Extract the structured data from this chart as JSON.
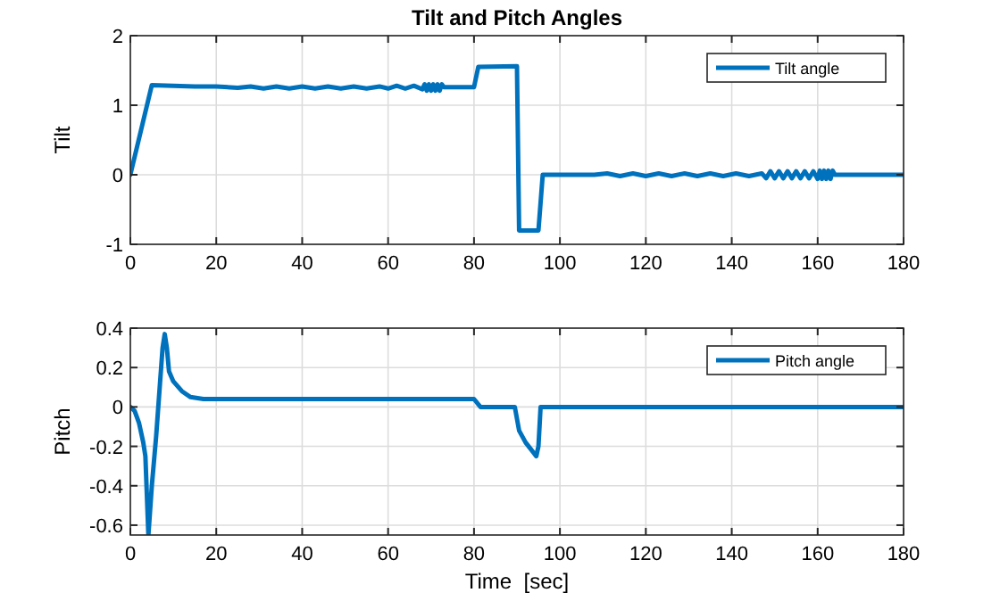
{
  "chart_data": [
    {
      "type": "line",
      "title": "Tilt and Pitch Angles",
      "ylabel": "Tilt",
      "xlim": [
        0,
        180
      ],
      "ylim": [
        -1,
        2
      ],
      "xticks": [
        0,
        20,
        40,
        60,
        80,
        100,
        120,
        140,
        160,
        180
      ],
      "yticks": [
        -1,
        0,
        1,
        2
      ],
      "grid": true,
      "legend": "top right",
      "line_style": "solid",
      "marker": "none",
      "series": [
        {
          "name": "Tilt angle",
          "color": "#0072bd",
          "x": [
            0,
            5,
            10,
            15,
            20,
            25,
            28,
            31,
            34,
            37,
            40,
            43,
            46,
            49,
            52,
            55,
            58,
            60,
            62,
            64,
            66,
            68,
            68.5,
            69,
            69.5,
            70,
            70.5,
            71,
            71.5,
            72,
            72.5,
            73,
            74,
            76,
            80,
            81,
            90,
            90.5,
            95,
            96,
            100,
            108,
            111,
            114,
            117,
            120,
            123,
            126,
            129,
            132,
            135,
            138,
            141,
            144,
            147,
            148,
            149,
            150,
            151,
            152,
            153,
            154,
            155,
            156,
            157,
            158,
            159,
            160,
            160.5,
            161,
            161.5,
            162,
            162.5,
            163,
            163.5,
            164,
            165,
            170,
            180
          ],
          "values": [
            0,
            1.29,
            1.28,
            1.27,
            1.27,
            1.25,
            1.27,
            1.24,
            1.27,
            1.24,
            1.27,
            1.24,
            1.27,
            1.24,
            1.27,
            1.24,
            1.27,
            1.24,
            1.28,
            1.24,
            1.28,
            1.23,
            1.3,
            1.21,
            1.3,
            1.21,
            1.3,
            1.21,
            1.3,
            1.21,
            1.3,
            1.26,
            1.26,
            1.26,
            1.26,
            1.55,
            1.56,
            -0.8,
            -0.8,
            0,
            0,
            0,
            0.02,
            -0.02,
            0.02,
            -0.02,
            0.02,
            -0.02,
            0.02,
            -0.02,
            0.02,
            -0.02,
            0.02,
            -0.02,
            0.02,
            -0.05,
            0.05,
            -0.05,
            0.05,
            -0.05,
            0.05,
            -0.05,
            0.05,
            -0.05,
            0.05,
            -0.05,
            0.05,
            -0.06,
            0.06,
            -0.06,
            0.06,
            -0.06,
            0.06,
            -0.06,
            0.06,
            0,
            0,
            0,
            0
          ]
        }
      ]
    },
    {
      "type": "line",
      "xlabel": "Time  [sec]",
      "ylabel": "Pitch",
      "xlim": [
        0,
        180
      ],
      "ylim": [
        -0.65,
        0.4
      ],
      "xticks": [
        0,
        20,
        40,
        60,
        80,
        100,
        120,
        140,
        160,
        180
      ],
      "yticks": [
        -0.6,
        -0.4,
        -0.2,
        0,
        0.2,
        0.4
      ],
      "grid": true,
      "legend": "top right",
      "line_style": "solid",
      "marker": "none",
      "series": [
        {
          "name": "Pitch angle",
          "color": "#0072bd",
          "x": [
            0,
            1,
            2,
            3,
            3.5,
            4.2,
            5,
            6,
            7,
            7.5,
            8,
            8.5,
            9,
            10,
            12,
            14,
            17,
            20,
            40,
            60,
            80,
            81.5,
            89.5,
            90.5,
            92,
            94.5,
            95,
            95.5,
            100,
            180
          ],
          "values": [
            0,
            -0.02,
            -0.08,
            -0.18,
            -0.25,
            -0.65,
            -0.4,
            -0.15,
            0.15,
            0.3,
            0.37,
            0.3,
            0.18,
            0.13,
            0.08,
            0.05,
            0.04,
            0.04,
            0.04,
            0.04,
            0.04,
            0,
            0,
            -0.12,
            -0.18,
            -0.25,
            -0.2,
            0,
            0,
            0
          ]
        }
      ]
    }
  ]
}
